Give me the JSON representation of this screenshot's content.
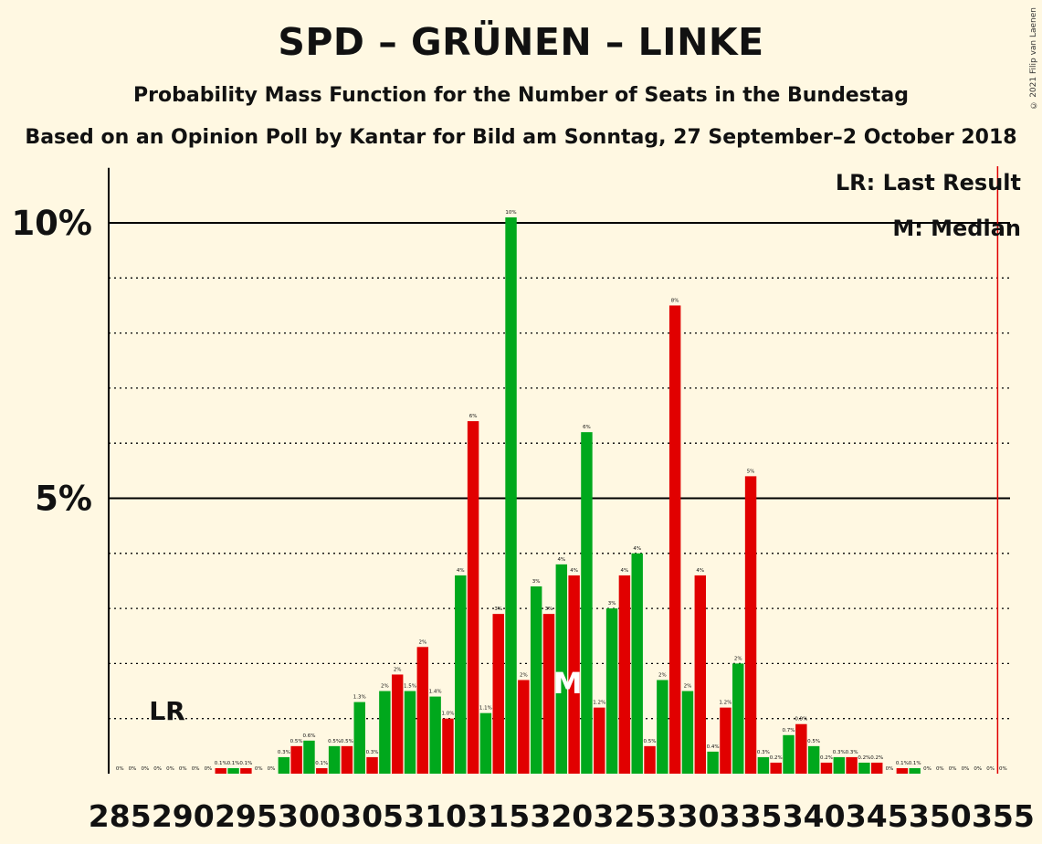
{
  "title": "SPD – GRÜNEN – LINKE",
  "subtitle": "Probability Mass Function for the Number of Seats in the Bundestag",
  "subtitle2": "Based on an Opinion Poll by Kantar for Bild am Sonntag, 27 September–2 October 2018",
  "copyright": "© 2021 Filip van Laenen",
  "colors": {
    "red": "#E10000",
    "green": "#00A81C",
    "background": "#FFF8E2",
    "lastResultLine": "#E10000"
  },
  "chart_data": {
    "type": "bar",
    "x": [
      285,
      286,
      287,
      288,
      289,
      290,
      291,
      292,
      293,
      294,
      295,
      296,
      297,
      298,
      299,
      300,
      301,
      302,
      303,
      304,
      305,
      306,
      307,
      308,
      309,
      310,
      311,
      312,
      313,
      314,
      315,
      316,
      317,
      318,
      319,
      320,
      321,
      322,
      323,
      324,
      325,
      326,
      327,
      328,
      329,
      330,
      331,
      332,
      333,
      334,
      335,
      336,
      337,
      338,
      339,
      340,
      341,
      342,
      343,
      344,
      345,
      346,
      347,
      348,
      349,
      350,
      351,
      352,
      353,
      354,
      355
    ],
    "values": [
      0,
      0,
      0,
      0,
      0,
      0,
      0,
      0,
      0.1,
      0.1,
      0.1,
      0,
      0,
      0.3,
      0.5,
      0.6,
      0.1,
      0.5,
      0.5,
      1.3,
      0.3,
      1.5,
      1.8,
      1.5,
      2.3,
      1.4,
      1.0,
      3.6,
      6.4,
      1.1,
      2.9,
      10.1,
      1.7,
      3.4,
      2.9,
      3.8,
      3.6,
      6.2,
      1.2,
      3.0,
      3.6,
      4.0,
      0.5,
      1.7,
      8.5,
      1.5,
      3.6,
      0.4,
      1.2,
      2.0,
      5.4,
      0.3,
      0.2,
      0.7,
      0.9,
      0.5,
      0.2,
      0.3,
      0.3,
      0.2,
      0.2,
      0,
      0.1,
      0.1,
      0,
      0,
      0,
      0,
      0,
      0,
      0
    ],
    "labels": [
      "0%",
      "0%",
      "0%",
      "0%",
      "0%",
      "0%",
      "0%",
      "0%",
      "0.1%",
      "0.1%",
      "0.1%",
      "0%",
      "0%",
      "0.3%",
      "0.5%",
      "0.6%",
      "0.1%",
      "0.5%",
      "0.5%",
      "1.3%",
      "0.3%",
      "2%",
      "2%",
      "1.5%",
      "2%",
      "1.4%",
      "1.0%",
      "4%",
      "6%",
      "1.1%",
      "3%",
      "10%",
      "2%",
      "3%",
      "3%",
      "4%",
      "4%",
      "6%",
      "1.2%",
      "3%",
      "4%",
      "4%",
      "0.5%",
      "2%",
      "8%",
      "2%",
      "4%",
      "0.4%",
      "1.2%",
      "2%",
      "5%",
      "0.3%",
      "0.2%",
      "0.7%",
      "0.9%",
      "0.5%",
      "0.2%",
      "0.3%",
      "0.3%",
      "0.2%",
      "0.2%",
      "0%",
      "0.1%",
      "0.1%",
      "0%",
      "0%",
      "0%",
      "0%",
      "0%",
      "0%",
      "0%"
    ],
    "x_ticks": [
      285,
      290,
      295,
      300,
      305,
      310,
      315,
      320,
      325,
      330,
      335,
      340,
      345,
      350,
      355
    ],
    "y_ticks": [
      {
        "value": 5,
        "label": "5%"
      },
      {
        "value": 10,
        "label": "10%"
      }
    ],
    "y_minor_gridlines": [
      1,
      2,
      3,
      4,
      6,
      7,
      8,
      9
    ],
    "ylim": [
      0,
      11
    ],
    "last_result": {
      "x": 355,
      "label": "LR",
      "legend": "LR: Last Result"
    },
    "median": {
      "x": 321,
      "label": "M",
      "legend": "M: Median"
    },
    "xlabel": "",
    "ylabel": ""
  }
}
